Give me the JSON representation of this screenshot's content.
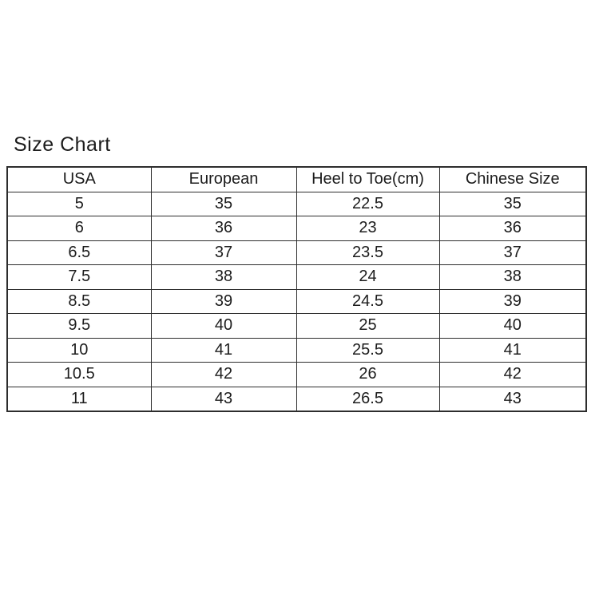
{
  "title": "Size Chart",
  "chart_data": {
    "type": "table",
    "title": "Size Chart",
    "columns": [
      "USA",
      "European",
      "Heel to Toe(cm)",
      "Chinese Size"
    ],
    "rows": [
      [
        "5",
        "35",
        "22.5",
        "35"
      ],
      [
        "6",
        "36",
        "23",
        "36"
      ],
      [
        "6.5",
        "37",
        "23.5",
        "37"
      ],
      [
        "7.5",
        "38",
        "24",
        "38"
      ],
      [
        "8.5",
        "39",
        "24.5",
        "39"
      ],
      [
        "9.5",
        "40",
        "25",
        "40"
      ],
      [
        "10",
        "41",
        "25.5",
        "41"
      ],
      [
        "10.5",
        "42",
        "26",
        "42"
      ],
      [
        "11",
        "43",
        "26.5",
        "43"
      ]
    ]
  },
  "colors": {
    "background": "#ffffff",
    "text": "#1c1c1c",
    "border": "#2d2d2d"
  }
}
